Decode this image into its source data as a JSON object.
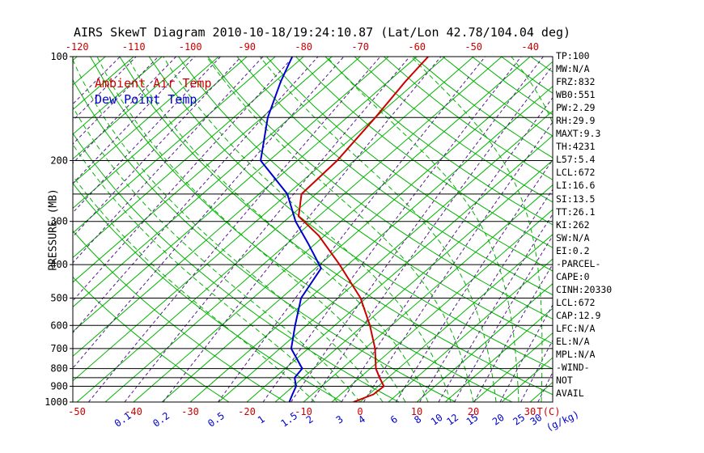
{
  "title": "AIRS SkewT Diagram 2010-10-18/19:24:10.87 (Lat/Lon 42.78/104.04 deg)",
  "legend": {
    "ambient_label": "Ambient Air Temp",
    "dewpoint_label": "Dew Point Temp"
  },
  "axes": {
    "pressure_label": "PRESSURE (MB)",
    "pressure_ticks": [
      100,
      200,
      300,
      400,
      500,
      600,
      700,
      800,
      900,
      1000
    ],
    "pressure_lines": [
      100,
      150,
      200,
      250,
      300,
      400,
      500,
      600,
      700,
      800,
      850,
      900,
      1000
    ],
    "top_temp_ticks": [
      -120,
      -110,
      -100,
      -90,
      -80,
      -70,
      -60,
      -50,
      -40
    ],
    "bottom_temp_ticks": [
      -50,
      -40,
      -30,
      -20,
      -10,
      0,
      10,
      20,
      30
    ],
    "bottom_temp_unit": "T(C)",
    "mixing_ratio_ticks": [
      0.1,
      0.2,
      0.5,
      1,
      1.5,
      2,
      3,
      4,
      6,
      8,
      10,
      12,
      15,
      20,
      25,
      30
    ],
    "mixing_ratio_unit": "(g/kg)"
  },
  "colors": {
    "isotherm": "#00b400",
    "mixratio": "#551a8b",
    "temp_axis": "#cc0000",
    "ambient": "#cc0000",
    "dewpoint": "#0000cc",
    "axis_black": "#000000"
  },
  "chart_data": {
    "type": "line",
    "title": "AIRS SkewT Diagram 2010-10-18/19:24:10.87 (Lat/Lon 42.78/104.04 deg)",
    "x_axis": "Temperature (C), skewed 45 deg, ticks -120 to -40 (top) and -50 to 30 (bottom)",
    "y_axis": "Pressure (MB), log scale 100 to 1000",
    "ylim": [
      1000,
      100
    ],
    "grid": "skew-t background: green isotherms, green dry/moist adiabats, violet dashed mixing-ratio lines (0.1-30 g/kg), black isobars",
    "legend_position": "top-left inside plot",
    "series": [
      {
        "id": "ambient-temp",
        "name": "Ambient Air Temp",
        "color": "#cc0000",
        "units": "[pressure_mb, temperature_C]",
        "points": [
          [
            1000,
            -1.2
          ],
          [
            950,
            0.8
          ],
          [
            900,
            1.0
          ],
          [
            850,
            -1.5
          ],
          [
            800,
            -4.0
          ],
          [
            700,
            -8.2
          ],
          [
            600,
            -13.8
          ],
          [
            500,
            -21.0
          ],
          [
            400,
            -31.5
          ],
          [
            330,
            -41.0
          ],
          [
            290,
            -48.5
          ],
          [
            250,
            -52.5
          ],
          [
            200,
            -53.0
          ],
          [
            150,
            -55.0
          ],
          [
            118,
            -57.0
          ],
          [
            100,
            -58.0
          ]
        ]
      },
      {
        "id": "dew-point",
        "name": "Dew Point Temp",
        "color": "#0000cc",
        "units": "[pressure_mb, temperature_C]",
        "points": [
          [
            1000,
            -12.5
          ],
          [
            950,
            -13.5
          ],
          [
            900,
            -14.5
          ],
          [
            850,
            -16.5
          ],
          [
            800,
            -17.0
          ],
          [
            700,
            -23.0
          ],
          [
            600,
            -27.0
          ],
          [
            500,
            -31.5
          ],
          [
            410,
            -34.0
          ],
          [
            350,
            -41.0
          ],
          [
            300,
            -48.0
          ],
          [
            250,
            -55.0
          ],
          [
            200,
            -66.5
          ],
          [
            150,
            -74.0
          ],
          [
            118,
            -79.0
          ],
          [
            100,
            -82.0
          ]
        ]
      }
    ]
  },
  "stats": [
    "TP:100",
    "MW:N/A",
    "FRZ:832",
    "WB0:551",
    "PW:2.29",
    "RH:29.9",
    "MAXT:9.3",
    "TH:4231",
    "L57:5.4",
    "LCL:672",
    "LI:16.6",
    "SI:13.5",
    "TT:26.1",
    "KI:262",
    "SW:N/A",
    "EI:0.2",
    "-PARCEL-",
    "CAPE:0",
    "CINH:20330",
    "LCL:672",
    "CAP:12.9",
    "LFC:N/A",
    "EL:N/A",
    "MPL:N/A",
    "-WIND-",
    "NOT",
    "AVAIL"
  ]
}
